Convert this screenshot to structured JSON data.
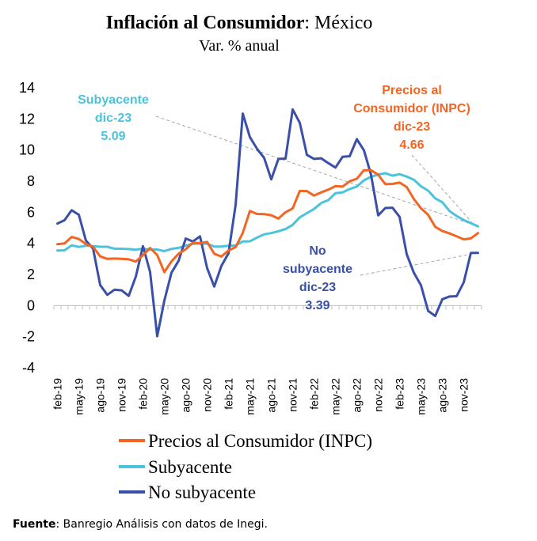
{
  "title": {
    "bold": "Inflación al Consumidor",
    "rest": ": México",
    "subtitle": "Var. % anual"
  },
  "source": {
    "label": "Fuente",
    "text": ": Banregio Análisis con datos de Inegi."
  },
  "colors": {
    "inpc": "#F26522",
    "subyacente": "#4BC3DC",
    "no_subyacente": "#3A50A8",
    "leader": "#A6A6A6"
  },
  "annotations": [
    {
      "key": "sub",
      "lines": [
        "Subyacente",
        "dic-23",
        "5.09"
      ],
      "color": "#4BC3DC"
    },
    {
      "key": "inpc",
      "lines": [
        "Precios al",
        "Consumidor (INPC)",
        "dic-23",
        "4.66"
      ],
      "color": "#F26522"
    },
    {
      "key": "nosub",
      "lines": [
        "No",
        "subyacente",
        "dic-23",
        "3.39"
      ],
      "color": "#3A50A8"
    }
  ],
  "chart_data": {
    "type": "line",
    "ylim": [
      -4,
      14
    ],
    "yticks": [
      "14",
      "12",
      "10",
      "8",
      "6",
      "4",
      "2",
      "0",
      "-2",
      "-4"
    ],
    "x_tick_labels": [
      "feb-19",
      "may-19",
      "ago-19",
      "nov-19",
      "feb-20",
      "may-20",
      "ago-20",
      "nov-20",
      "feb-21",
      "may-21",
      "ago-21",
      "nov-21",
      "feb-22",
      "may-22",
      "ago-22",
      "nov-22",
      "feb-23",
      "may-23",
      "ago-23",
      "nov-23"
    ],
    "x_start": "feb-19",
    "x_end": "dic-23",
    "legend_position": "bottom",
    "series": [
      {
        "name": "Precios al Consumidor (INPC)",
        "key": "inpc",
        "values": [
          3.94,
          4.0,
          4.41,
          4.28,
          3.95,
          3.78,
          3.16,
          3.0,
          3.02,
          3.0,
          2.97,
          2.83,
          3.24,
          3.7,
          3.25,
          2.15,
          2.84,
          3.33,
          3.62,
          4.05,
          4.01,
          4.09,
          3.33,
          3.15,
          3.54,
          3.76,
          4.67,
          6.08,
          5.89,
          5.88,
          5.81,
          5.59,
          6.0,
          6.24,
          7.37,
          7.36,
          7.07,
          7.28,
          7.45,
          7.68,
          7.65,
          7.99,
          8.15,
          8.7,
          8.7,
          8.41,
          7.8,
          7.82,
          7.91,
          7.62,
          6.85,
          6.25,
          5.84,
          5.06,
          4.79,
          4.64,
          4.45,
          4.26,
          4.32,
          4.66
        ]
      },
      {
        "name": "Subyacente",
        "key": "subyacente",
        "values": [
          3.54,
          3.55,
          3.87,
          3.77,
          3.85,
          3.82,
          3.78,
          3.78,
          3.66,
          3.65,
          3.63,
          3.59,
          3.66,
          3.6,
          3.6,
          3.5,
          3.64,
          3.71,
          3.85,
          3.97,
          3.99,
          3.98,
          3.79,
          3.8,
          3.84,
          3.87,
          4.12,
          4.13,
          4.37,
          4.58,
          4.66,
          4.78,
          4.92,
          5.19,
          5.67,
          5.94,
          6.21,
          6.59,
          6.78,
          7.22,
          7.28,
          7.49,
          7.65,
          8.05,
          8.28,
          8.42,
          8.51,
          8.35,
          8.45,
          8.29,
          8.09,
          7.67,
          7.39,
          6.89,
          6.64,
          6.08,
          5.76,
          5.5,
          5.3,
          5.09
        ]
      },
      {
        "name": "No subyacente",
        "key": "no_subyacente",
        "values": [
          5.27,
          5.49,
          6.13,
          5.84,
          4.17,
          3.67,
          1.32,
          0.69,
          1.02,
          0.98,
          0.62,
          1.87,
          3.82,
          2.16,
          -1.97,
          0.32,
          2.11,
          2.88,
          4.31,
          4.12,
          4.45,
          2.41,
          1.22,
          2.55,
          3.36,
          6.48,
          12.34,
          10.83,
          10.08,
          9.49,
          8.11,
          9.43,
          9.45,
          12.61,
          11.75,
          9.69,
          9.43,
          9.47,
          9.16,
          8.87,
          9.56,
          9.6,
          10.7,
          9.98,
          8.4,
          5.8,
          6.27,
          6.29,
          5.7,
          3.3,
          2.11,
          1.31,
          -0.34,
          -0.67,
          0.41,
          0.58,
          0.6,
          1.49,
          3.39,
          3.39
        ]
      }
    ]
  }
}
